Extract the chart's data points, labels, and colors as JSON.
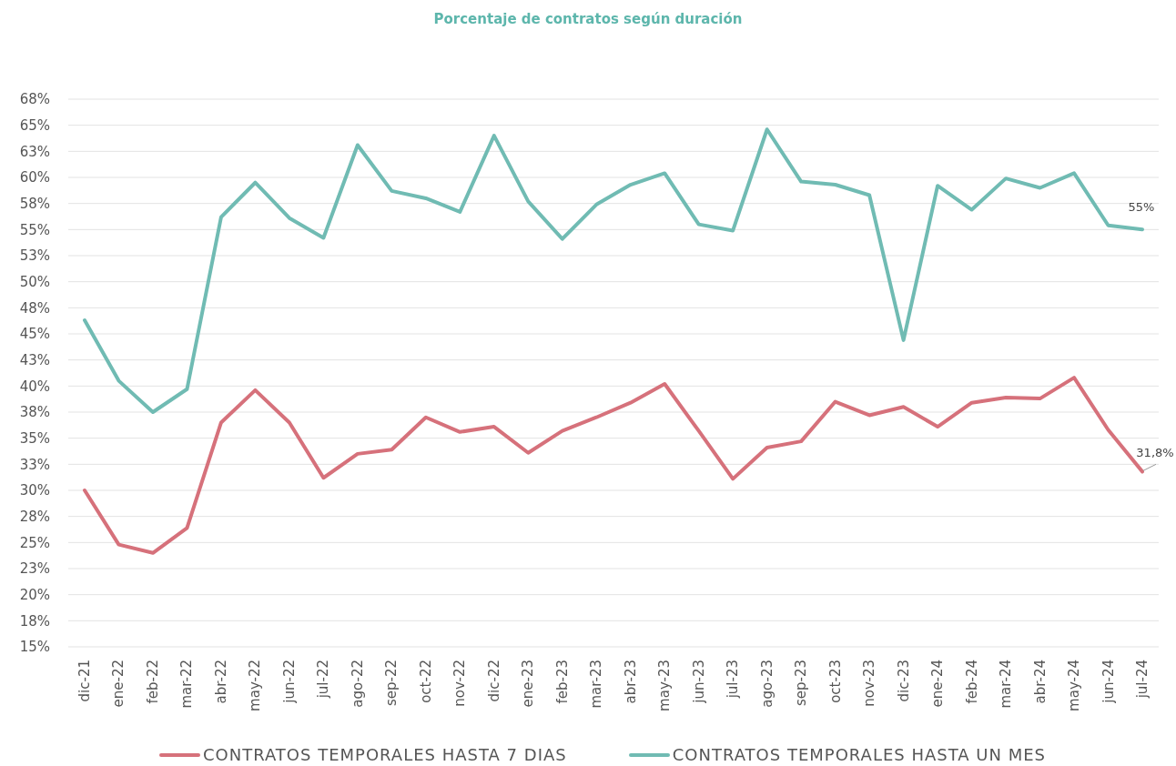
{
  "chart_data": {
    "type": "line",
    "title": "Porcentaje de contratos según duración",
    "categories": [
      "dic-21",
      "ene-22",
      "feb-22",
      "mar-22",
      "abr-22",
      "may-22",
      "jun-22",
      "jul-22",
      "ago-22",
      "sep-22",
      "oct-22",
      "nov-22",
      "dic-22",
      "ene-23",
      "feb-23",
      "mar-23",
      "abr-23",
      "may-23",
      "jun-23",
      "jul-23",
      "ago-23",
      "sep-23",
      "oct-23",
      "nov-23",
      "dic-23",
      "ene-24",
      "feb-24",
      "mar-24",
      "abr-24",
      "may-24",
      "jun-24",
      "jul-24"
    ],
    "series": [
      {
        "name": "CONTRATOS TEMPORALES HASTA 7 DIAS",
        "color": "#d6717b",
        "values": [
          30.0,
          24.8,
          24.0,
          26.4,
          36.5,
          39.6,
          36.5,
          31.2,
          33.5,
          33.9,
          37.0,
          35.6,
          36.1,
          33.6,
          35.7,
          37.0,
          38.4,
          40.2,
          35.7,
          31.1,
          34.1,
          34.7,
          38.5,
          37.2,
          38.0,
          36.1,
          38.4,
          38.9,
          38.8,
          40.8,
          35.8,
          31.8
        ],
        "value_labels": [
          null,
          null,
          null,
          null,
          null,
          null,
          null,
          null,
          null,
          null,
          null,
          null,
          null,
          null,
          null,
          null,
          null,
          null,
          null,
          null,
          null,
          null,
          null,
          null,
          null,
          null,
          null,
          null,
          null,
          null,
          null,
          "31,8%"
        ]
      },
      {
        "name": "CONTRATOS TEMPORALES HASTA UN MES",
        "color": "#70bbb3",
        "values": [
          46.3,
          40.5,
          37.5,
          39.7,
          56.2,
          59.5,
          56.1,
          54.2,
          63.1,
          58.7,
          58.0,
          56.7,
          64.0,
          57.7,
          54.1,
          57.4,
          59.3,
          60.4,
          55.5,
          54.9,
          64.6,
          59.6,
          59.3,
          58.3,
          44.4,
          59.2,
          56.9,
          59.9,
          59.0,
          60.4,
          55.4,
          55.0
        ],
        "value_labels": [
          null,
          null,
          null,
          null,
          null,
          null,
          null,
          null,
          null,
          null,
          null,
          null,
          null,
          null,
          null,
          null,
          null,
          null,
          null,
          null,
          null,
          null,
          null,
          null,
          null,
          null,
          null,
          null,
          null,
          null,
          null,
          "55%"
        ]
      }
    ],
    "ylim": [
      15,
      67.5
    ],
    "yticks": [
      {
        "value": 15,
        "label": "15%"
      },
      {
        "value": 17.5,
        "label": "18%"
      },
      {
        "value": 20,
        "label": "20%"
      },
      {
        "value": 22.5,
        "label": "23%"
      },
      {
        "value": 25,
        "label": "25%"
      },
      {
        "value": 27.5,
        "label": "28%"
      },
      {
        "value": 30,
        "label": "30%"
      },
      {
        "value": 32.5,
        "label": "33%"
      },
      {
        "value": 35,
        "label": "35%"
      },
      {
        "value": 37.5,
        "label": "38%"
      },
      {
        "value": 40,
        "label": "40%"
      },
      {
        "value": 42.5,
        "label": "43%"
      },
      {
        "value": 45,
        "label": "45%"
      },
      {
        "value": 47.5,
        "label": "48%"
      },
      {
        "value": 50,
        "label": "50%"
      },
      {
        "value": 52.5,
        "label": "53%"
      },
      {
        "value": 55,
        "label": "55%"
      },
      {
        "value": 57.5,
        "label": "58%"
      },
      {
        "value": 60,
        "label": "60%"
      },
      {
        "value": 62.5,
        "label": "63%"
      },
      {
        "value": 65,
        "label": "65%"
      },
      {
        "value": 67.5,
        "label": "68%"
      }
    ],
    "grid": "y",
    "legend": "bottom",
    "marker": "none",
    "line_style": "solid"
  }
}
